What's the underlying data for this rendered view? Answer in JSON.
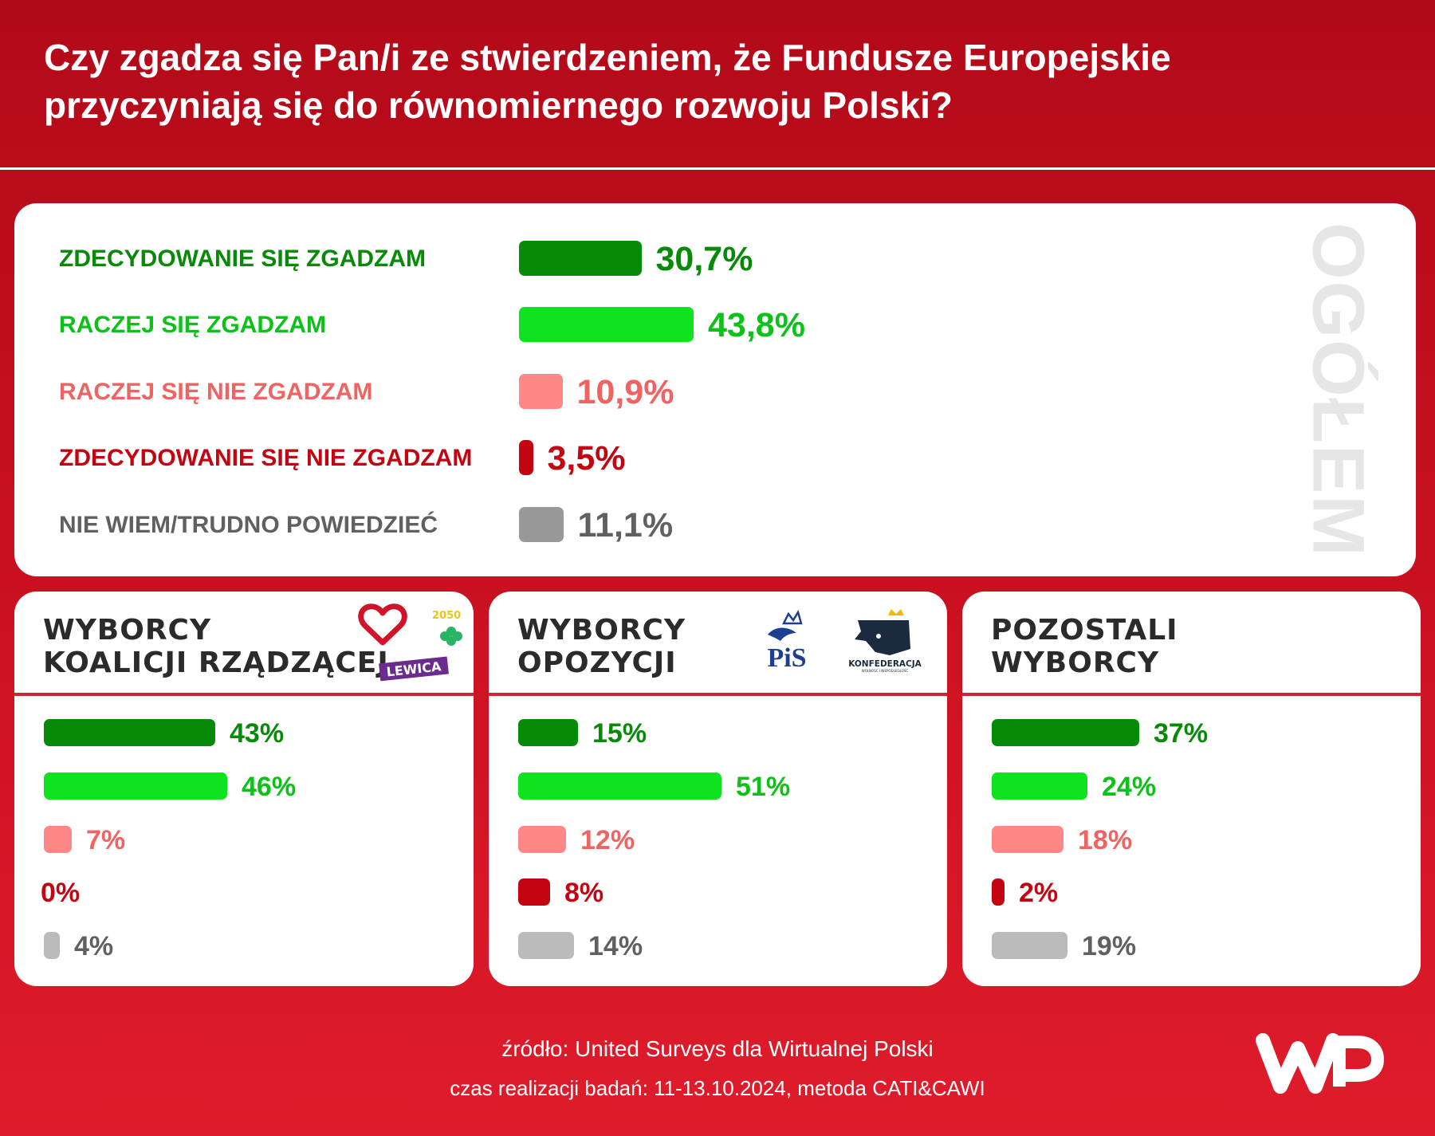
{
  "header": {
    "title": "Czy zgadza się Pan/i ze stwierdzeniem, że Fundusze Europejskie przyczyniają się do równomiernego rozwoju Polski?"
  },
  "colors": {
    "strongly_agree": "#078a07",
    "rather_agree": "#0fe21f",
    "rather_disagree": "#fe8787",
    "strongly_disagree": "#c20510",
    "dont_know_overall": "#999999",
    "dont_know_groups": "#bbbbbb",
    "label_dont_know": "#606060"
  },
  "overall": {
    "side_label": "OGÓŁEM",
    "rows": [
      {
        "label": "ZDECYDOWANIE SIĘ ZGADZAM",
        "value": "30,7%"
      },
      {
        "label": "RACZEJ SIĘ ZGADZAM",
        "value": "43,8%"
      },
      {
        "label": "RACZEJ SIĘ NIE ZGADZAM",
        "value": "10,9%"
      },
      {
        "label": "ZDECYDOWANIE SIĘ NIE ZGADZAM",
        "value": "3,5%"
      },
      {
        "label": "NIE WIEM/TRUDNO POWIEDZIEĆ",
        "value": "11,1%"
      }
    ]
  },
  "groups": [
    {
      "title_lines": [
        "WYBORCY",
        "KOALICJI RZĄDZĄCEJ"
      ],
      "values": [
        "43%",
        "46%",
        "7%",
        "0%",
        "4%"
      ],
      "logos": {
        "lewica": "LEWICA",
        "tw": "2050"
      }
    },
    {
      "title_lines": [
        "WYBORCY",
        "OPOZYCJI"
      ],
      "values": [
        "15%",
        "51%",
        "12%",
        "8%",
        "14%"
      ],
      "logos": {
        "pis": "PiS",
        "konfederacja": "KONFEDERACJA",
        "konfederacja_sub": "WOLNOŚĆ I NIEPODLEGŁOŚĆ"
      }
    },
    {
      "title_lines": [
        "POZOSTALI",
        "WYBORCY"
      ],
      "values": [
        "37%",
        "24%",
        "18%",
        "2%",
        "19%"
      ]
    }
  ],
  "chart_data": [
    {
      "type": "bar",
      "title": "OGÓŁEM",
      "categories": [
        "ZDECYDOWANIE SIĘ ZGADZAM",
        "RACZEJ SIĘ ZGADZAM",
        "RACZEJ SIĘ NIE ZGADZAM",
        "ZDECYDOWANIE SIĘ NIE ZGADZAM",
        "NIE WIEM/TRUDNO POWIEDZIEĆ"
      ],
      "values": [
        30.7,
        43.8,
        10.9,
        3.5,
        11.1
      ],
      "unit": "%"
    },
    {
      "type": "bar",
      "title": "WYBORCY KOALICJI RZĄDZĄCEJ",
      "categories": [
        "ZDECYDOWANIE SIĘ ZGADZAM",
        "RACZEJ SIĘ ZGADZAM",
        "RACZEJ SIĘ NIE ZGADZAM",
        "ZDECYDOWANIE SIĘ NIE ZGADZAM",
        "NIE WIEM/TRUDNO POWIEDZIEĆ"
      ],
      "values": [
        43,
        46,
        7,
        0,
        4
      ],
      "unit": "%"
    },
    {
      "type": "bar",
      "title": "WYBORCY OPOZYCJI",
      "categories": [
        "ZDECYDOWANIE SIĘ ZGADZAM",
        "RACZEJ SIĘ ZGADZAM",
        "RACZEJ SIĘ NIE ZGADZAM",
        "ZDECYDOWANIE SIĘ NIE ZGADZAM",
        "NIE WIEM/TRUDNO POWIEDZIEĆ"
      ],
      "values": [
        15,
        51,
        12,
        8,
        14
      ],
      "unit": "%"
    },
    {
      "type": "bar",
      "title": "POZOSTALI WYBORCY",
      "categories": [
        "ZDECYDOWANIE SIĘ ZGADZAM",
        "RACZEJ SIĘ ZGADZAM",
        "RACZEJ SIĘ NIE ZGADZAM",
        "ZDECYDOWANIE SIĘ NIE ZGADZAM",
        "NIE WIEM/TRUDNO POWIEDZIEĆ"
      ],
      "values": [
        37,
        24,
        18,
        2,
        19
      ],
      "unit": "%"
    }
  ],
  "footer": {
    "source": "źródło: United Surveys dla Wirtualnej Polski",
    "method": "czas realizacji badań: 11-13.10.2024, metoda CATI&CAWI",
    "brand": "WP"
  }
}
